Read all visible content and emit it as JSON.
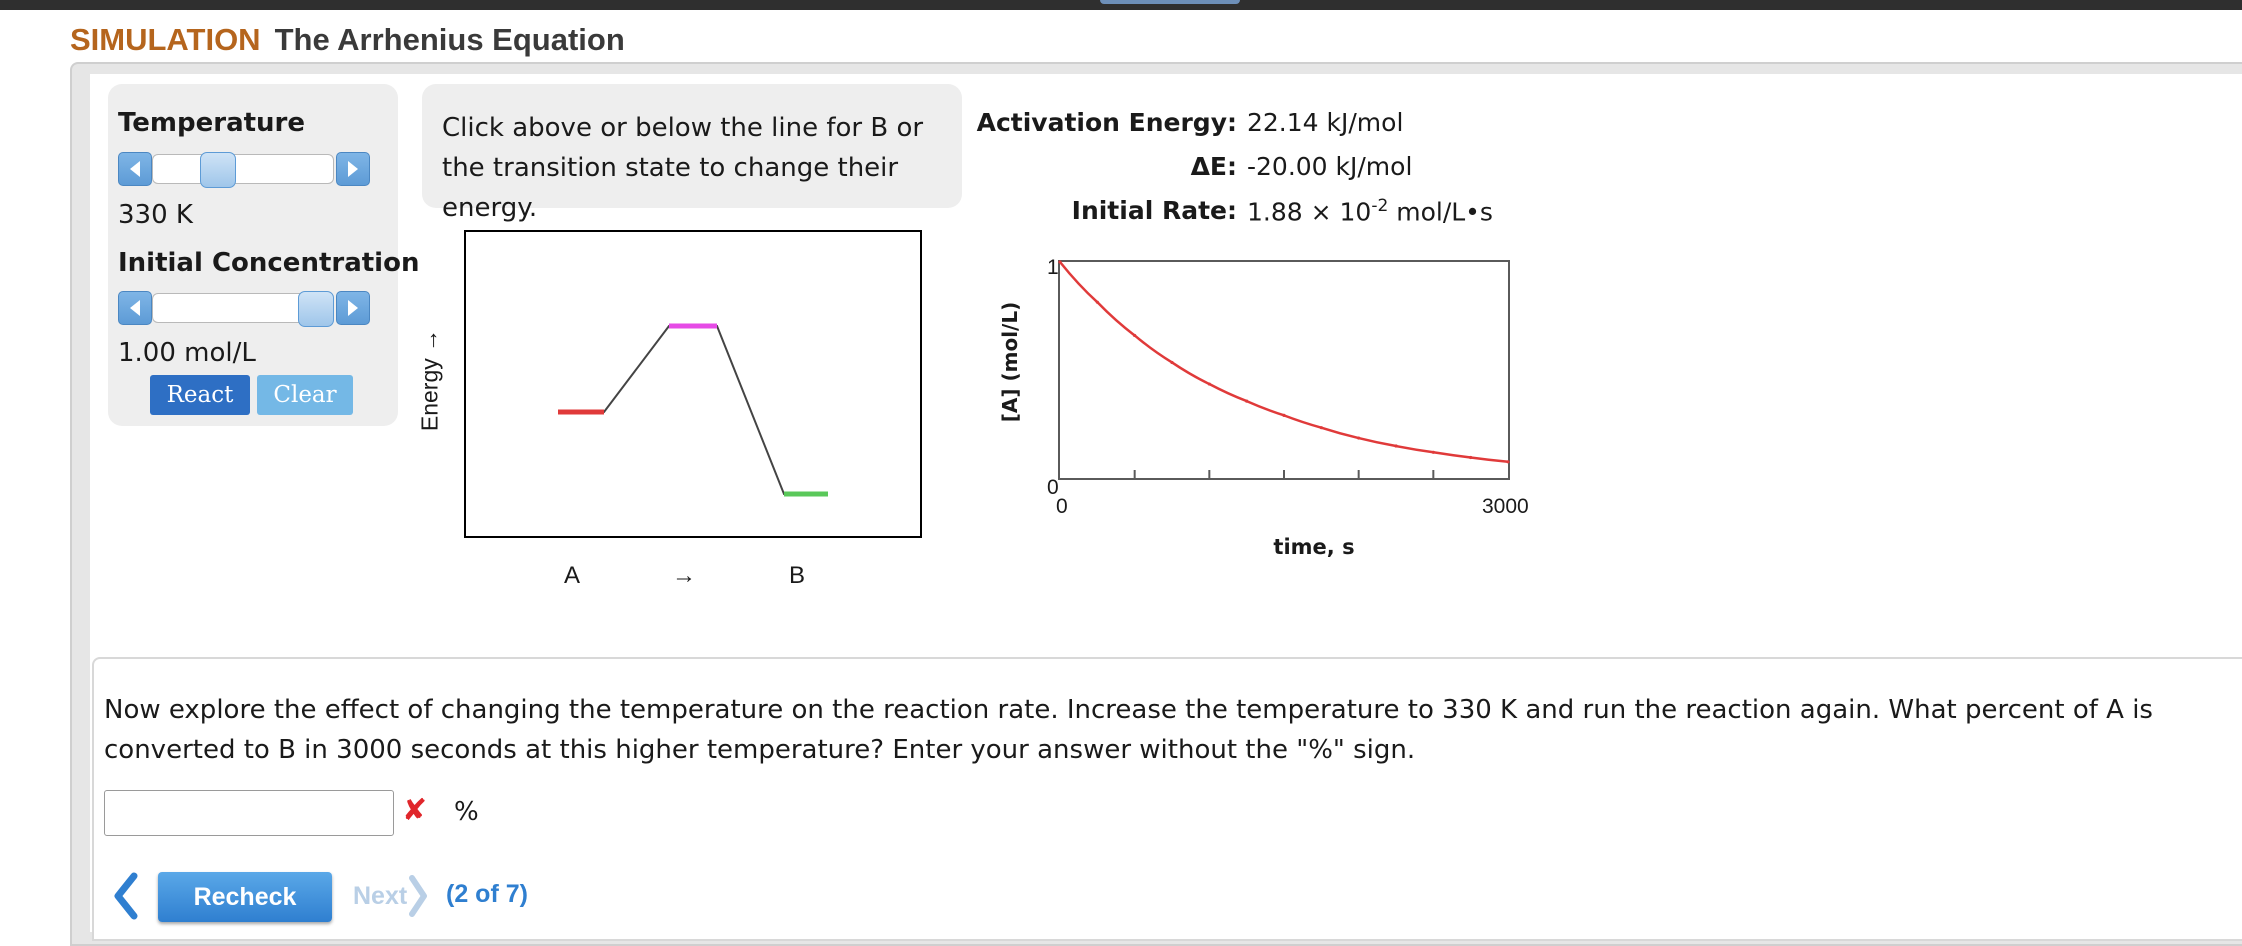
{
  "header": {
    "label": "SIMULATION",
    "title": "The Arrhenius Equation"
  },
  "controls": {
    "temperature": {
      "label": "Temperature",
      "value": "330 K",
      "position_fraction": 0.3
    },
    "concentration": {
      "label": "Initial Concentration",
      "value": "1.00 mol/L",
      "position_fraction": 1.0
    },
    "react_label": "React",
    "clear_label": "Clear"
  },
  "instructions": "Click above or below the line for B or the transition state to change their energy.",
  "energy_diagram": {
    "axis_label": "Energy →",
    "labels": {
      "a": "A",
      "arrow": "→",
      "b": "B"
    },
    "colors": {
      "reactant": "#e03a3a",
      "transition": "#e64be6",
      "product": "#5ac85a",
      "line": "#444444"
    }
  },
  "stats": {
    "activation_energy": {
      "label": "Activation Energy:",
      "value": "22.14 kJ/mol"
    },
    "delta_e": {
      "label": "ΔE:",
      "value": "-20.00 kJ/mol"
    },
    "initial_rate": {
      "label": "Initial Rate:",
      "mantissa": "1.88 × 10",
      "exponent": "-2",
      "unit": " mol/L•s"
    }
  },
  "chart_data": {
    "type": "line",
    "xlabel": "time, s",
    "ylabel": "[A] (mol/L)",
    "xlim": [
      0,
      3000
    ],
    "ylim": [
      0,
      1
    ],
    "x_ticks": [
      "0",
      "3000"
    ],
    "y_ticks": [
      "1",
      "0"
    ],
    "x": [
      0,
      250,
      500,
      750,
      1000,
      1250,
      1500,
      1750,
      2000,
      2250,
      2500,
      2750,
      3000
    ],
    "series": [
      {
        "values": [
          1.0,
          0.814,
          0.66,
          0.535,
          0.435,
          0.356,
          0.29,
          0.233,
          0.185,
          0.148,
          0.119,
          0.095,
          0.075
        ],
        "color": "#e03a3a"
      }
    ]
  },
  "question": {
    "text": "Now explore the effect of changing the temperature on the reaction rate. Increase the temperature to 330 K and run the reaction again. What percent of A is converted to B in 3000 seconds at this higher temperature? Enter your answer without the \"%\" sign.",
    "input_value": "",
    "unit": "%",
    "status_icon": "incorrect-x-icon"
  },
  "navigation": {
    "recheck_label": "Recheck",
    "next_label": "Next",
    "progress": "(2 of 7)"
  }
}
